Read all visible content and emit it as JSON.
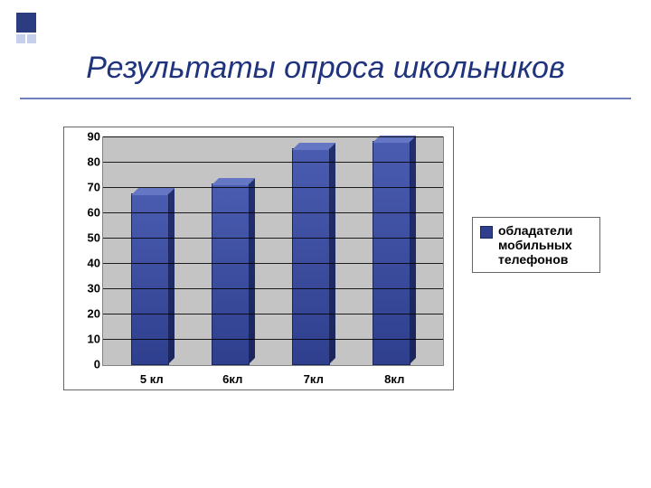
{
  "title": "Результаты опроса школьников",
  "chart": {
    "type": "bar",
    "categories": [
      "5 кл",
      "6кл",
      "7кл",
      "8кл"
    ],
    "values": [
      67,
      71,
      85,
      88
    ],
    "ylim": [
      0,
      90
    ],
    "ytick_step": 10,
    "bar_color_front_top": "#4a5cb0",
    "bar_color_front_bottom": "#2f3f8e",
    "bar_color_side": "#1a265c",
    "bar_color_top": "#6576c4",
    "plot_bg": "#c4c4c4",
    "grid_color": "#000000",
    "axis_font_size": 13,
    "axis_font_weight": "bold",
    "legend": {
      "label": "обладатели мобильных телефонов",
      "swatch_color": "#2f3f8e"
    }
  },
  "accent_navy": "#2b3c81",
  "accent_light": "#c6d0ec",
  "title_color": "#1f347c",
  "title_fontsize": 34
}
